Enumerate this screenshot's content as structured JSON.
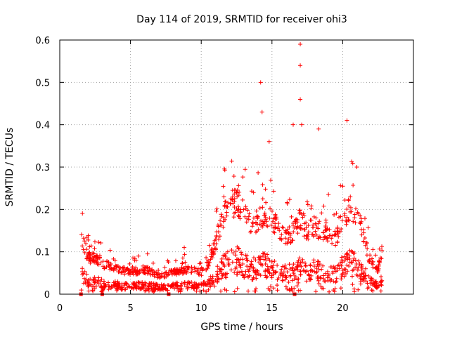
{
  "chart_data": {
    "type": "scatter",
    "title": "Day 114 of 2019, SRMTID for receiver ohi3",
    "xlabel": "GPS time / hours",
    "ylabel": "SRMTID / TECUs",
    "xlim": [
      0,
      25
    ],
    "ylim": [
      0,
      0.6
    ],
    "xticks": [
      "0",
      "5",
      "10",
      "15",
      "20"
    ],
    "xtick_values": [
      0,
      5,
      10,
      15,
      20
    ],
    "yticks": [
      "0",
      "0.1",
      "0.2",
      "0.3",
      "0.4",
      "0.5",
      "0.6"
    ],
    "ytick_values": [
      0,
      0.1,
      0.2,
      0.3,
      0.4,
      0.5,
      0.6
    ],
    "grid": true,
    "marker": "+",
    "series_color": "#ff0000",
    "gap_markers_x": [
      1.5,
      3.0,
      7.7,
      16.6
    ],
    "profile": {
      "description_hours": [
        1.5,
        2.0,
        2.5,
        3.0,
        4.0,
        5.0,
        6.0,
        7.0,
        8.0,
        9.0,
        10.0,
        10.5,
        11.0,
        11.5,
        12.0,
        12.5,
        13.0,
        13.5,
        14.0,
        14.5,
        15.0,
        15.5,
        16.0,
        16.5,
        17.0,
        17.5,
        18.0,
        18.5,
        19.0,
        19.5,
        20.0,
        20.5,
        21.0,
        21.5,
        22.0,
        22.5,
        22.8
      ],
      "median": [
        0.09,
        0.06,
        0.055,
        0.05,
        0.04,
        0.035,
        0.04,
        0.03,
        0.035,
        0.04,
        0.035,
        0.05,
        0.08,
        0.12,
        0.14,
        0.15,
        0.13,
        0.11,
        0.12,
        0.13,
        0.12,
        0.1,
        0.09,
        0.1,
        0.12,
        0.1,
        0.11,
        0.1,
        0.1,
        0.09,
        0.12,
        0.14,
        0.13,
        0.09,
        0.05,
        0.04,
        0.07
      ]
    },
    "spikes": [
      {
        "x": 14.2,
        "y": 0.5
      },
      {
        "x": 14.3,
        "y": 0.43
      },
      {
        "x": 14.8,
        "y": 0.36
      },
      {
        "x": 16.5,
        "y": 0.4
      },
      {
        "x": 17.0,
        "y": 0.59
      },
      {
        "x": 17.0,
        "y": 0.54
      },
      {
        "x": 17.0,
        "y": 0.46
      },
      {
        "x": 17.1,
        "y": 0.4
      },
      {
        "x": 18.3,
        "y": 0.39
      },
      {
        "x": 20.3,
        "y": 0.41
      },
      {
        "x": 21.0,
        "y": 0.3
      },
      {
        "x": 13.7,
        "y": 0.24
      },
      {
        "x": 12.5,
        "y": 0.24
      },
      {
        "x": 6.2,
        "y": 0.095
      },
      {
        "x": 8.8,
        "y": 0.11
      }
    ]
  }
}
